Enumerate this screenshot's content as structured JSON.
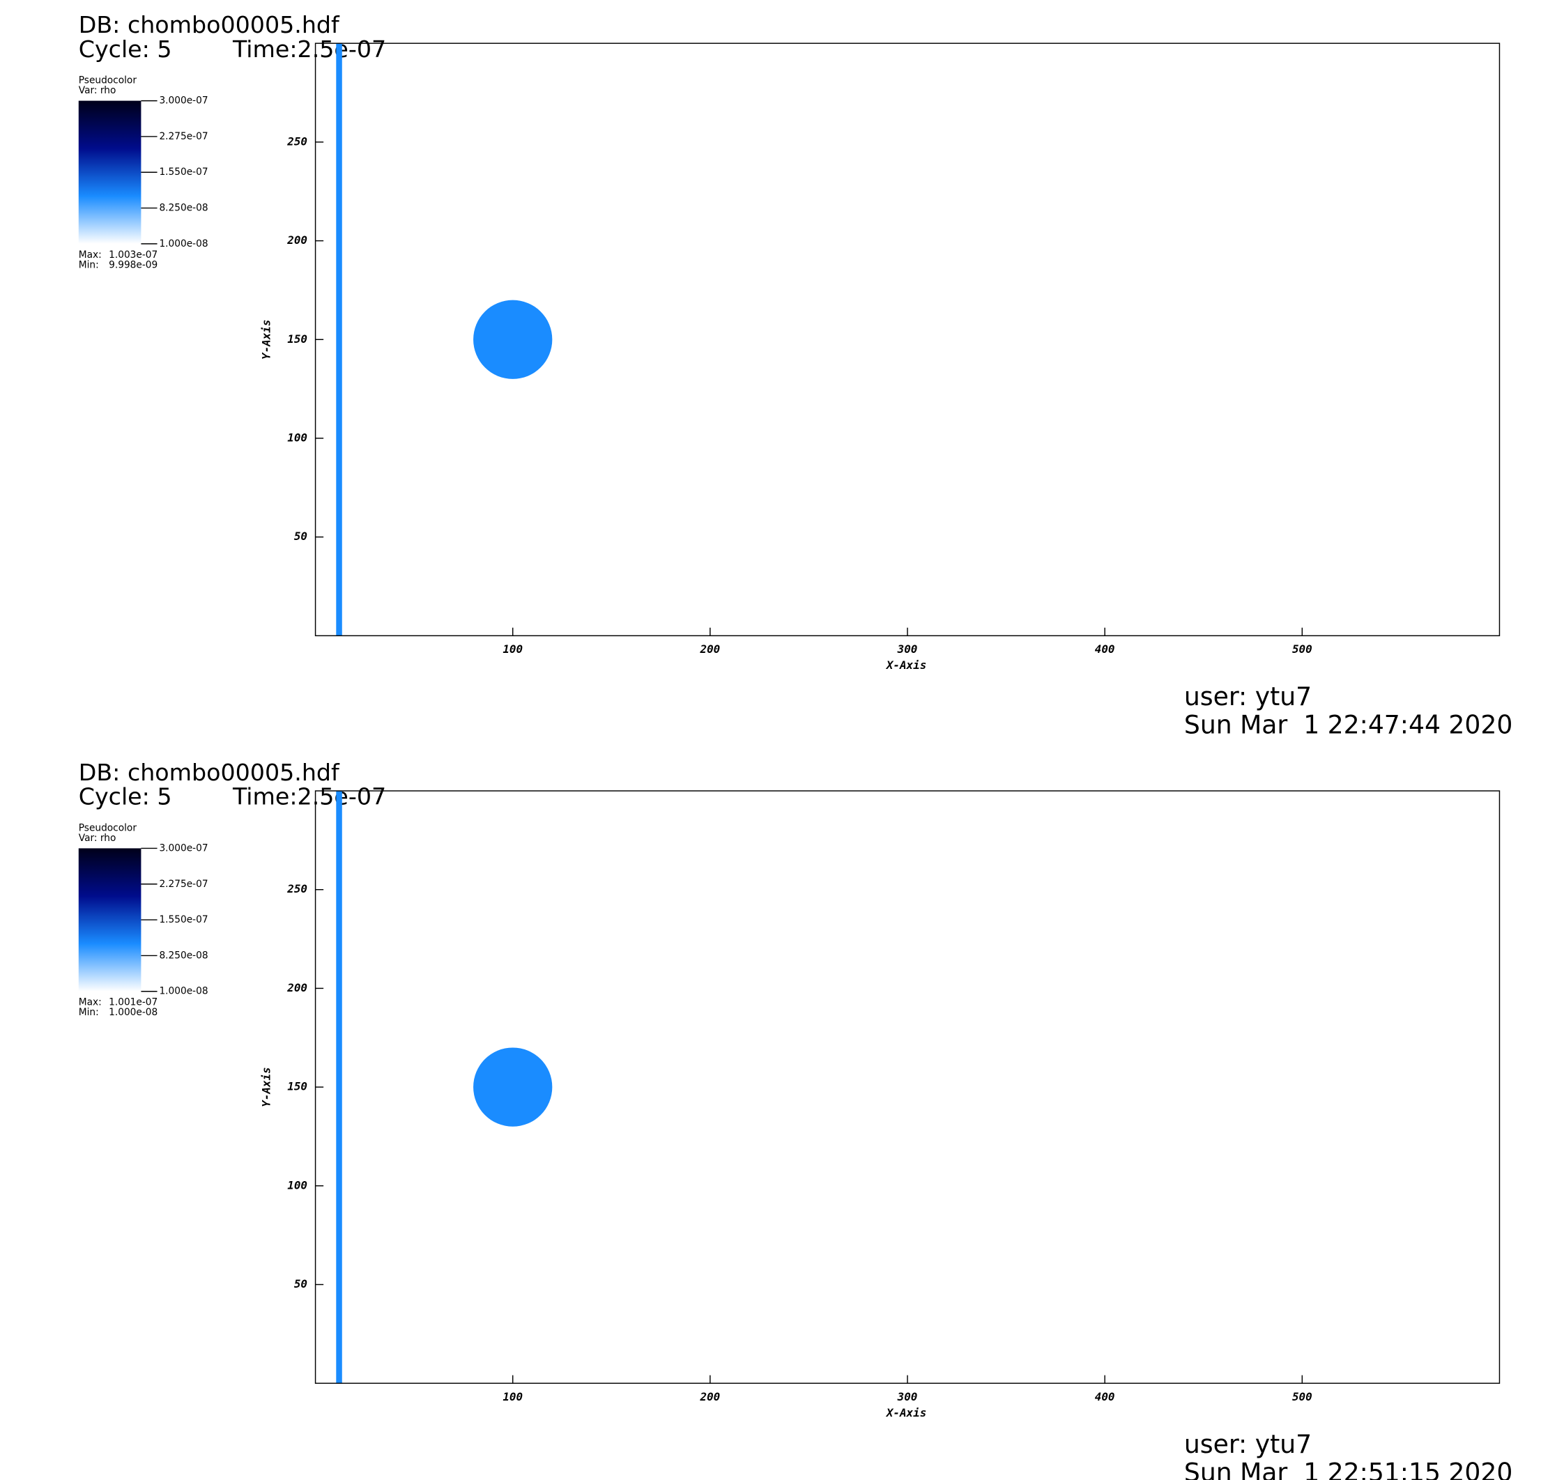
{
  "chart_data": [
    {
      "type": "pseudocolor",
      "title": "DB: chombo00005.hdf",
      "cycle": "Cycle: 5",
      "time": "Time:2.5e-07",
      "legend_title": "Pseudocolor",
      "legend_var": "Var: rho",
      "xlabel": "X-Axis",
      "ylabel": "Y-Axis",
      "xlim": [
        0,
        600
      ],
      "ylim": [
        0,
        300
      ],
      "xticks": [
        100,
        200,
        300,
        400,
        500
      ],
      "yticks": [
        50,
        100,
        150,
        200,
        250
      ],
      "clim": [
        1e-08,
        3e-07
      ],
      "cticks": [
        {
          "value": 3e-07,
          "label": "3.000e-07"
        },
        {
          "value": 2.275e-07,
          "label": "2.275e-07"
        },
        {
          "value": 1.55e-07,
          "label": "1.550e-07"
        },
        {
          "value": 8.25e-08,
          "label": "8.250e-08"
        },
        {
          "value": 1e-08,
          "label": "1.000e-08"
        }
      ],
      "colormap": [
        "#ffffff",
        "#1a8cff",
        "#000c8c",
        "#00001a"
      ],
      "stats": [
        {
          "name": "Max:",
          "value": 1.003e-07,
          "label": "1.003e-07"
        },
        {
          "name": "Min:",
          "value": 9.998e-09,
          "label": "9.998e-09"
        }
      ],
      "circle": {
        "x": 100,
        "y": 150,
        "r": 20
      },
      "stripe": {
        "x": 12,
        "width": 3
      },
      "feature_color": "#1a8cff",
      "user": "user: ytu7",
      "date": "Sun Mar  1 22:47:44 2020"
    },
    {
      "type": "pseudocolor",
      "title": "DB: chombo00005.hdf",
      "cycle": "Cycle: 5",
      "time": "Time:2.5e-07",
      "legend_title": "Pseudocolor",
      "legend_var": "Var: rho",
      "xlabel": "X-Axis",
      "ylabel": "Y-Axis",
      "xlim": [
        0,
        600
      ],
      "ylim": [
        0,
        300
      ],
      "xticks": [
        100,
        200,
        300,
        400,
        500
      ],
      "yticks": [
        50,
        100,
        150,
        200,
        250
      ],
      "clim": [
        1e-08,
        3e-07
      ],
      "cticks": [
        {
          "value": 3e-07,
          "label": "3.000e-07"
        },
        {
          "value": 2.275e-07,
          "label": "2.275e-07"
        },
        {
          "value": 1.55e-07,
          "label": "1.550e-07"
        },
        {
          "value": 8.25e-08,
          "label": "8.250e-08"
        },
        {
          "value": 1e-08,
          "label": "1.000e-08"
        }
      ],
      "colormap": [
        "#ffffff",
        "#1a8cff",
        "#000c8c",
        "#00001a"
      ],
      "stats": [
        {
          "name": "Max:",
          "value": 1.001e-07,
          "label": "1.001e-07"
        },
        {
          "name": "Min:",
          "value": 1e-08,
          "label": "1.000e-08"
        }
      ],
      "circle": {
        "x": 100,
        "y": 150,
        "r": 20
      },
      "stripe": {
        "x": 12,
        "width": 3
      },
      "feature_color": "#1a8cff",
      "user": "user: ytu7",
      "date": "Sun Mar  1 22:51:15 2020"
    }
  ]
}
